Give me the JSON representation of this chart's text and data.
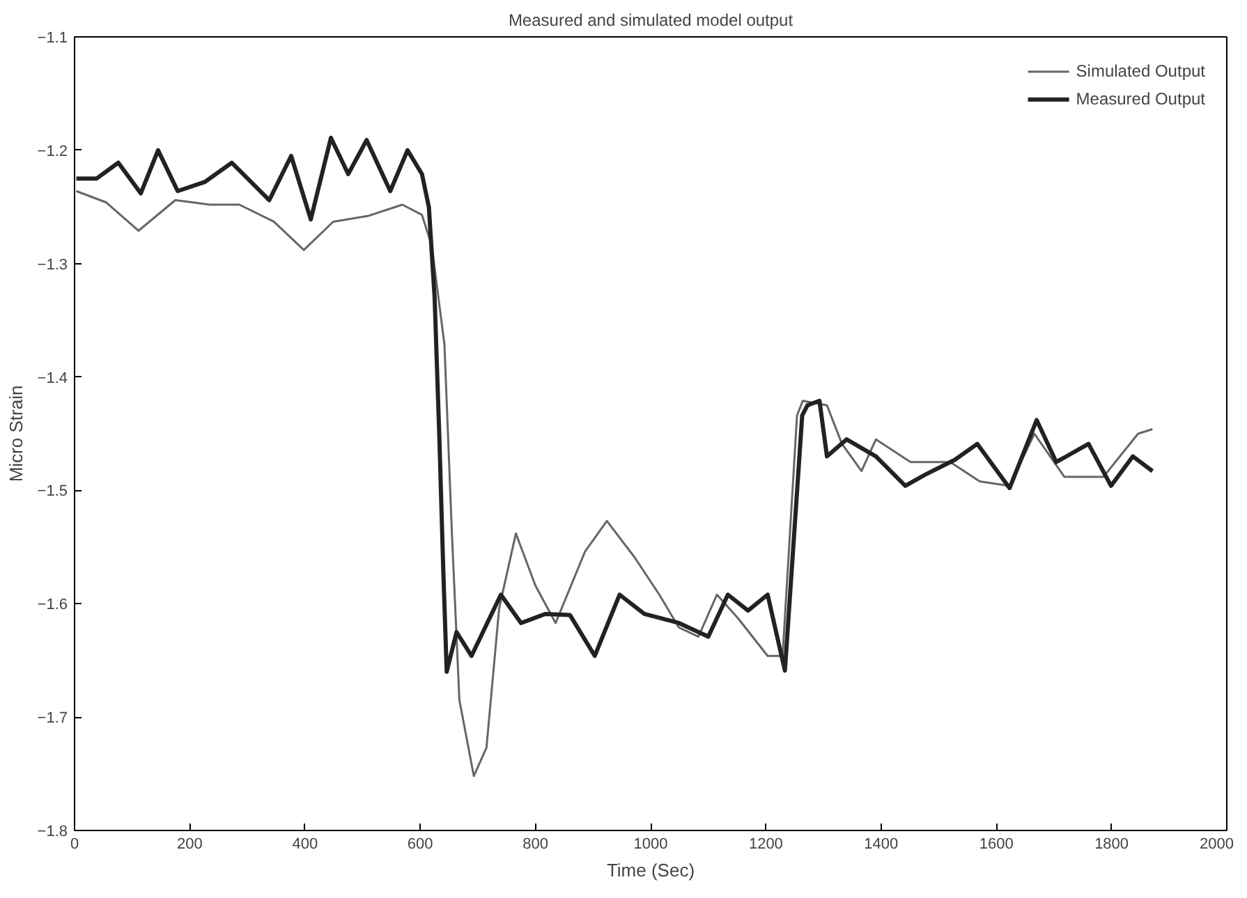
{
  "chart_data": {
    "type": "line",
    "title": "Measured and simulated model output",
    "xlabel": "Time (Sec)",
    "ylabel": "Micro Strain",
    "xlim": [
      0,
      2000
    ],
    "ylim": [
      -1.8,
      -1.1
    ],
    "xticks": [
      0,
      200,
      400,
      600,
      800,
      1000,
      1200,
      1400,
      1600,
      1800,
      2000
    ],
    "yticks": [
      -1.8,
      -1.7,
      -1.6,
      -1.5,
      -1.4,
      -1.3,
      -1.2,
      -1.1
    ],
    "grid": false,
    "legend": "top right",
    "series": [
      {
        "name": "Simulated Output",
        "color": "#666666",
        "x": [
          3,
          55,
          111,
          175,
          235,
          286,
          346,
          398,
          449,
          509,
          569,
          603,
          620,
          642,
          655,
          668,
          693,
          715,
          737,
          766,
          800,
          835,
          886,
          924,
          972,
          1015,
          1049,
          1083,
          1115,
          1152,
          1203,
          1229,
          1254,
          1264,
          1306,
          1332,
          1366,
          1391,
          1451,
          1520,
          1571,
          1623,
          1666,
          1718,
          1786,
          1846,
          1871
        ],
        "values": [
          -1.236,
          -1.246,
          -1.271,
          -1.244,
          -1.248,
          -1.248,
          -1.263,
          -1.288,
          -1.263,
          -1.258,
          -1.248,
          -1.257,
          -1.284,
          -1.371,
          -1.538,
          -1.685,
          -1.752,
          -1.727,
          -1.604,
          -1.538,
          -1.584,
          -1.617,
          -1.554,
          -1.527,
          -1.559,
          -1.592,
          -1.621,
          -1.629,
          -1.592,
          -1.613,
          -1.646,
          -1.646,
          -1.434,
          -1.421,
          -1.425,
          -1.459,
          -1.483,
          -1.455,
          -1.475,
          -1.475,
          -1.492,
          -1.496,
          -1.45,
          -1.488,
          -1.488,
          -1.45,
          -1.446
        ]
      },
      {
        "name": "Measured Output",
        "color": "#222222",
        "x": [
          3,
          38,
          76,
          115,
          145,
          179,
          226,
          273,
          338,
          376,
          410,
          445,
          475,
          507,
          548,
          578,
          603,
          615,
          625,
          633,
          640,
          646,
          663,
          689,
          740,
          775,
          817,
          860,
          903,
          946,
          989,
          1049,
          1100,
          1134,
          1169,
          1203,
          1233,
          1263,
          1272,
          1293,
          1306,
          1340,
          1391,
          1442,
          1477,
          1528,
          1567,
          1623,
          1670,
          1704,
          1760,
          1799,
          1837,
          1871
        ],
        "values": [
          -1.225,
          -1.225,
          -1.211,
          -1.238,
          -1.2,
          -1.236,
          -1.228,
          -1.211,
          -1.244,
          -1.205,
          -1.261,
          -1.189,
          -1.221,
          -1.191,
          -1.236,
          -1.2,
          -1.221,
          -1.25,
          -1.33,
          -1.45,
          -1.57,
          -1.66,
          -1.625,
          -1.646,
          -1.592,
          -1.617,
          -1.609,
          -1.61,
          -1.646,
          -1.592,
          -1.609,
          -1.617,
          -1.629,
          -1.592,
          -1.606,
          -1.592,
          -1.659,
          -1.434,
          -1.425,
          -1.421,
          -1.47,
          -1.455,
          -1.47,
          -1.496,
          -1.486,
          -1.473,
          -1.459,
          -1.498,
          -1.438,
          -1.475,
          -1.459,
          -1.496,
          -1.47,
          -1.483
        ]
      }
    ]
  }
}
